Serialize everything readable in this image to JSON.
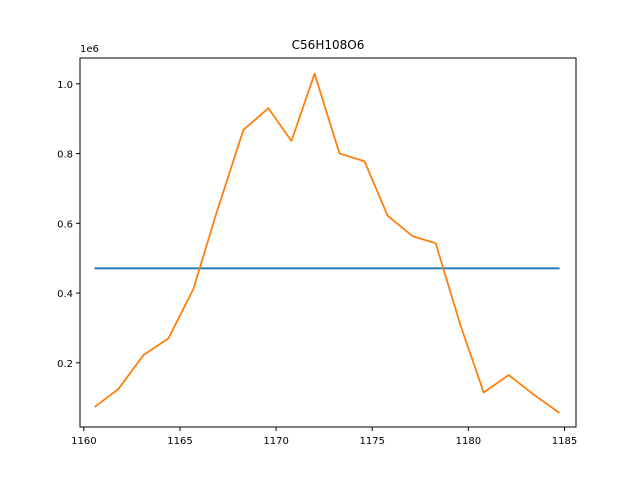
{
  "chart_data": {
    "type": "line",
    "title": "C56H108O6",
    "xlabel": "",
    "ylabel": "",
    "y_multiplier_label": "1e6",
    "xlim": [
      1159.8,
      1185.6
    ],
    "ylim": [
      0.016,
      1.074
    ],
    "xticks": [
      1160,
      1165,
      1170,
      1175,
      1180,
      1185
    ],
    "yticks": [
      0.2,
      0.4,
      0.6,
      0.8,
      1.0
    ],
    "ytick_labels": [
      "0.2",
      "0.4",
      "0.6",
      "0.8",
      "1.0"
    ],
    "grid": false,
    "series": [
      {
        "color": "#1f77b4",
        "x": [
          1160.6,
          1184.7
        ],
        "y": [
          0.471,
          0.471
        ]
      },
      {
        "color": "#ff7f0e",
        "x": [
          1160.6,
          1161.8,
          1163.1,
          1164.4,
          1165.7,
          1166.9,
          1168.3,
          1169.6,
          1170.8,
          1172.0,
          1173.3,
          1174.6,
          1175.8,
          1177.1,
          1178.3,
          1179.6,
          1180.8,
          1182.1,
          1183.4,
          1184.7
        ],
        "y": [
          0.075,
          0.125,
          0.222,
          0.27,
          0.412,
          0.63,
          0.868,
          0.93,
          0.836,
          1.029,
          0.8,
          0.778,
          0.622,
          0.563,
          0.543,
          0.306,
          0.115,
          0.165,
          0.109,
          0.058
        ]
      }
    ]
  }
}
